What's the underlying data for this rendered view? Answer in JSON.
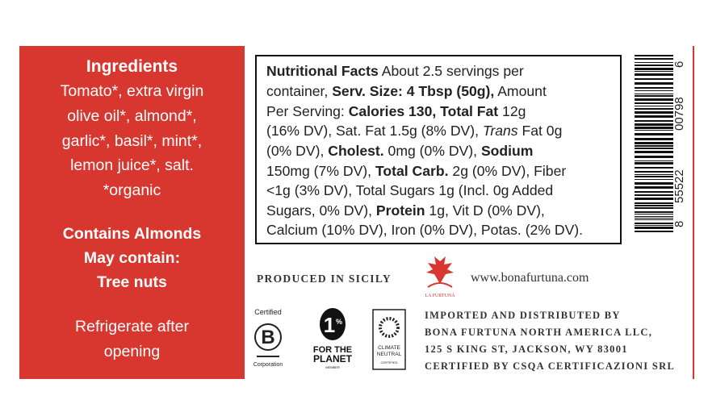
{
  "panel": {
    "title": "Ingredients",
    "ingredients": [
      "Tomato*, extra virgin",
      "olive oil*, almond*,",
      "garlic*, basil*, mint*,",
      "lemon juice*, salt.",
      "*organic"
    ],
    "allergens": [
      "Contains Almonds",
      "May contain:",
      "Tree nuts"
    ],
    "storage": [
      "Refrigerate after",
      "opening"
    ]
  },
  "nutrition": {
    "lines": [
      [
        "Nutritional Facts",
        " About 2.5 servings per"
      ],
      [
        "container, ",
        "Serv. Size: 4 Tbsp (50g),",
        " Amount"
      ],
      [
        "Per Serving: ",
        "Calories 130, Total Fat",
        " 12g"
      ],
      [
        "(16% DV), Sat. Fat 1.5g (8% DV), ",
        "Trans",
        " Fat 0g"
      ],
      [
        "(0% DV), ",
        "Cholest.",
        " 0mg (0% DV), ",
        "Sodium"
      ],
      [
        "150mg (7% DV), ",
        "Total Carb.",
        " 2g (0% DV), Fiber"
      ],
      [
        "<1g (3% DV), Total Sugars 1g (Incl. 0g Added"
      ],
      [
        "Sugars, 0% DV), ",
        "Protein",
        " 1g, Vit D (0% DV),"
      ],
      [
        "Calcium (10% DV), Iron (0% DV), Potas. (2% DV)."
      ]
    ]
  },
  "barcode": {
    "digits": [
      "8",
      "55522",
      "00798",
      "6"
    ]
  },
  "origin": {
    "produced": "PRODUCED IN SICILY",
    "logo": "LA FURTUNA",
    "website": "www.bonafurtuna.com"
  },
  "badges": {
    "bcorp": {
      "top": "Certified",
      "letter": "B",
      "bottom": "Corporation"
    },
    "planet": {
      "number": "1",
      "percent": "%",
      "line1": "FOR THE",
      "line2": "PLANET",
      "line3": "MEMBER"
    },
    "climate": {
      "line1": "CLIMATE",
      "line2": "NEUTRAL",
      "line3": "CERTIFIED"
    }
  },
  "importer": [
    "IMPORTED AND DISTRIBUTED BY",
    "BONA FURTUNA NORTH AMERICA LLC,",
    "125 S KING ST, JACKSON, WY 83001",
    "CERTIFIED BY CSQA CERTIFICAZIONI SRL"
  ]
}
